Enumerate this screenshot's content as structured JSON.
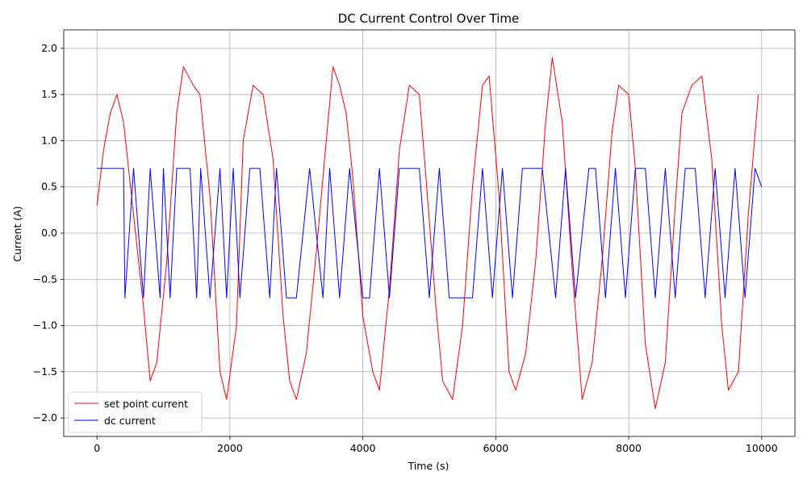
{
  "chart_data": {
    "type": "line",
    "title": "DC Current Control Over Time",
    "xlabel": "Time (s)",
    "ylabel": "Current (A)",
    "xlim": [
      -500,
      10500
    ],
    "ylim": [
      -2.2,
      2.2
    ],
    "xticks": [
      0,
      2000,
      4000,
      6000,
      8000,
      10000
    ],
    "yticks": [
      -2.0,
      -1.5,
      -1.0,
      -0.5,
      0.0,
      0.5,
      1.0,
      1.5,
      2.0
    ],
    "xtick_labels": [
      "0",
      "2000",
      "4000",
      "6000",
      "8000",
      "10000"
    ],
    "ytick_labels": [
      "−2.0",
      "−1.5",
      "−1.0",
      "−0.5",
      "0.0",
      "0.5",
      "1.0",
      "1.5",
      "2.0"
    ],
    "grid": true,
    "legend_position": "lower-left",
    "series": [
      {
        "name": "set point current",
        "color": "#ff0000",
        "x": [
          0,
          100,
          200,
          300,
          400,
          550,
          700,
          800,
          900,
          1050,
          1200,
          1300,
          1450,
          1550,
          1700,
          1850,
          1950,
          2100,
          2200,
          2350,
          2500,
          2650,
          2800,
          2900,
          3000,
          3150,
          3300,
          3450,
          3550,
          3650,
          3750,
          3850,
          4000,
          4150,
          4250,
          4400,
          4550,
          4700,
          4850,
          4950,
          5100,
          5200,
          5350,
          5500,
          5650,
          5800,
          5900,
          6050,
          6200,
          6300,
          6450,
          6600,
          6750,
          6850,
          7000,
          7150,
          7300,
          7450,
          7600,
          7750,
          7850,
          8000,
          8100,
          8250,
          8400,
          8550,
          8700,
          8800,
          8950,
          9100,
          9250,
          9400,
          9500,
          9650,
          9800,
          9950
        ],
        "values": [
          0.3,
          0.9,
          1.3,
          1.5,
          1.2,
          0.2,
          -0.8,
          -1.6,
          -1.4,
          -0.3,
          1.3,
          1.8,
          1.6,
          1.5,
          0.4,
          -1.5,
          -1.8,
          -1.0,
          1.0,
          1.6,
          1.5,
          0.8,
          -0.9,
          -1.6,
          -1.8,
          -1.3,
          -0.2,
          1.0,
          1.8,
          1.6,
          1.3,
          0.6,
          -0.9,
          -1.5,
          -1.7,
          -0.6,
          0.9,
          1.6,
          1.5,
          0.6,
          -0.8,
          -1.6,
          -1.8,
          -1.0,
          0.5,
          1.6,
          1.7,
          0.4,
          -1.5,
          -1.7,
          -1.3,
          -0.3,
          1.2,
          1.9,
          1.2,
          -0.4,
          -1.8,
          -1.4,
          -0.3,
          1.1,
          1.6,
          1.5,
          0.7,
          -1.2,
          -1.9,
          -1.4,
          0.3,
          1.3,
          1.6,
          1.7,
          0.8,
          -1.0,
          -1.7,
          -1.5,
          0.2,
          1.5
        ]
      },
      {
        "name": "dc current",
        "color": "#0000ff",
        "x": [
          0,
          400,
          420,
          550,
          700,
          800,
          950,
          1000,
          1100,
          1200,
          1400,
          1500,
          1560,
          1700,
          1850,
          1950,
          2050,
          2150,
          2300,
          2450,
          2600,
          2700,
          2850,
          3000,
          3200,
          3400,
          3500,
          3650,
          3800,
          4000,
          4100,
          4250,
          4400,
          4550,
          4700,
          4850,
          5000,
          5150,
          5300,
          5500,
          5650,
          5800,
          5950,
          6100,
          6250,
          6400,
          6550,
          6700,
          6900,
          7050,
          7200,
          7400,
          7500,
          7650,
          7800,
          7950,
          8100,
          8250,
          8400,
          8550,
          8700,
          8850,
          9000,
          9150,
          9300,
          9450,
          9600,
          9750,
          9900,
          10000
        ],
        "values": [
          0.7,
          0.7,
          -0.7,
          0.7,
          -0.7,
          0.7,
          -0.7,
          0.7,
          -0.7,
          0.7,
          0.7,
          -0.7,
          0.7,
          -0.7,
          0.7,
          -0.7,
          0.7,
          -0.7,
          0.7,
          0.7,
          -0.7,
          0.7,
          -0.7,
          -0.7,
          0.7,
          -0.7,
          0.7,
          -0.7,
          0.7,
          -0.7,
          -0.7,
          0.7,
          -0.7,
          0.7,
          0.7,
          0.7,
          -0.7,
          0.7,
          -0.7,
          -0.7,
          -0.7,
          0.7,
          -0.7,
          0.7,
          -0.7,
          0.7,
          0.7,
          0.7,
          -0.7,
          0.7,
          -0.7,
          0.7,
          0.7,
          -0.7,
          0.7,
          -0.7,
          0.7,
          0.7,
          -0.7,
          0.7,
          -0.7,
          0.7,
          0.7,
          -0.7,
          0.7,
          -0.7,
          0.7,
          -0.7,
          0.7,
          0.5
        ]
      }
    ]
  }
}
